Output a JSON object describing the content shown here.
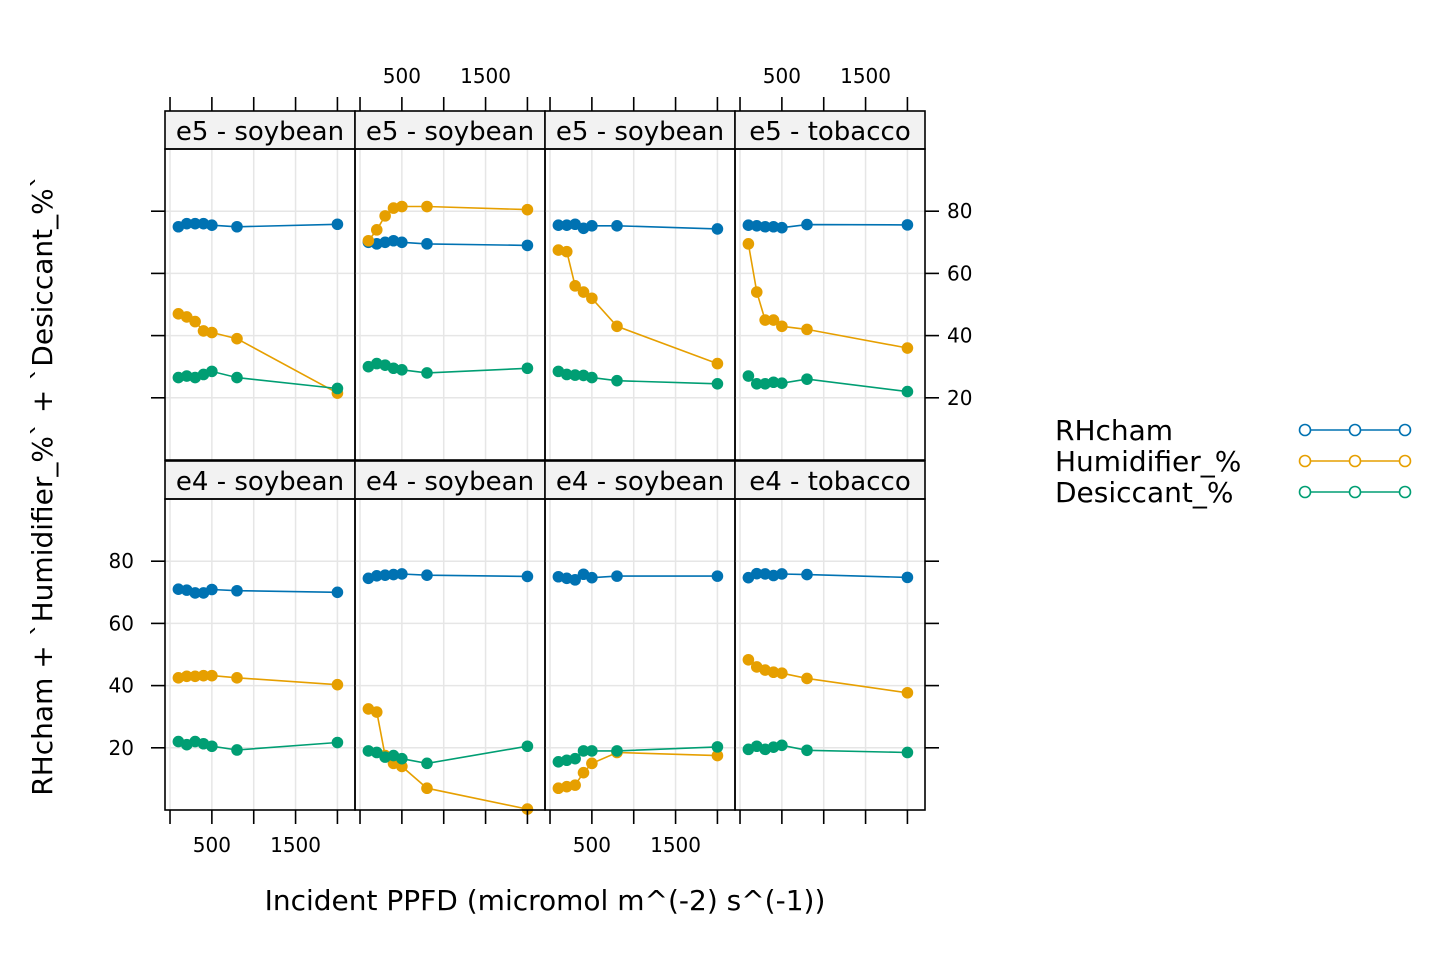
{
  "chart_data": {
    "type": "line",
    "xlabel": "Incident PPFD (micromol m^(-2) s^(-1))",
    "ylabel": "RHcham + `Humidifier_%` + `Desiccant_%`",
    "x_ticks": [
      0,
      500,
      1000,
      1500,
      2000
    ],
    "x_tick_labels": [
      "500",
      "1500"
    ],
    "x_tick_label_values": [
      500,
      1500
    ],
    "y_ticks": [
      20,
      40,
      60,
      80
    ],
    "y_tick_labels": [
      "20",
      "40",
      "60",
      "80"
    ],
    "xlim": [
      -60,
      2210
    ],
    "ylim": [
      0,
      100
    ],
    "grid": true,
    "legend_position": "right",
    "colors": {
      "RHcham": "#0072B2",
      "Humidifier_%": "#E69F00",
      "Desiccant_%": "#009E73"
    },
    "legend": [
      {
        "key": "RHcham",
        "label": "RHcham",
        "color": "#0072B2"
      },
      {
        "key": "Humidifier_%",
        "label": "Humidifier_%",
        "color": "#E69F00"
      },
      {
        "key": "Desiccant_%",
        "label": "Desiccant_%",
        "color": "#009E73"
      }
    ],
    "x": [
      100,
      200,
      300,
      400,
      500,
      600,
      900,
      2000
    ],
    "panels": [
      {
        "label": "e5 - soybean",
        "row": 0,
        "col": 0,
        "x": [
          100,
          200,
          300,
          400,
          500,
          800,
          2000
        ],
        "series": [
          {
            "name": "RHcham",
            "values": [
              75,
              76,
              76,
              76,
              75.5,
              75,
              75.8
            ]
          },
          {
            "name": "Humidifier_%",
            "values": [
              47,
              46,
              44.5,
              41.5,
              41,
              39,
              21.5
            ]
          },
          {
            "name": "Desiccant_%",
            "values": [
              26.5,
              27,
              26.5,
              27.5,
              28.5,
              26.5,
              23
            ]
          }
        ]
      },
      {
        "label": "e5 - soybean",
        "row": 0,
        "col": 1,
        "x": [
          100,
          200,
          300,
          400,
          500,
          800,
          2000
        ],
        "series": [
          {
            "name": "RHcham",
            "values": [
              70,
              69.5,
              70,
              70.5,
              70,
              69.5,
              69
            ]
          },
          {
            "name": "Humidifier_%",
            "values": [
              70.5,
              74,
              78.5,
              81,
              81.5,
              81.5,
              80.5
            ]
          },
          {
            "name": "Desiccant_%",
            "values": [
              30,
              31,
              30.5,
              29.5,
              29,
              28,
              29.5
            ]
          }
        ]
      },
      {
        "label": "e5 - soybean",
        "row": 0,
        "col": 2,
        "x": [
          100,
          200,
          300,
          400,
          500,
          800,
          2000
        ],
        "series": [
          {
            "name": "RHcham",
            "values": [
              75.5,
              75.5,
              75.8,
              74.5,
              75.3,
              75.3,
              74.3
            ]
          },
          {
            "name": "Humidifier_%",
            "values": [
              67.5,
              67,
              56,
              54,
              52,
              43,
              31
            ]
          },
          {
            "name": "Desiccant_%",
            "values": [
              28.5,
              27.5,
              27.3,
              27.2,
              26.5,
              25.5,
              24.5
            ]
          }
        ]
      },
      {
        "label": "e5 - tobacco",
        "row": 0,
        "col": 3,
        "x": [
          100,
          200,
          300,
          400,
          500,
          800,
          2000
        ],
        "series": [
          {
            "name": "RHcham",
            "values": [
              75.5,
              75.3,
              75,
              75,
              74.7,
              75.7,
              75.6
            ]
          },
          {
            "name": "Humidifier_%",
            "values": [
              69.5,
              54,
              45,
              45,
              43,
              42,
              36
            ]
          },
          {
            "name": "Desiccant_%",
            "values": [
              27,
              24.5,
              24.5,
              25,
              24.7,
              26,
              22
            ]
          }
        ]
      },
      {
        "label": "e4 - soybean",
        "row": 1,
        "col": 0,
        "x": [
          100,
          200,
          300,
          400,
          500,
          800,
          2000
        ],
        "series": [
          {
            "name": "RHcham",
            "values": [
              71,
              70.7,
              69.8,
              69.8,
              70.9,
              70.5,
              70
            ]
          },
          {
            "name": "Humidifier_%",
            "values": [
              42.5,
              43,
              43,
              43.2,
              43.2,
              42.5,
              40.3
            ]
          },
          {
            "name": "Desiccant_%",
            "values": [
              22,
              21,
              22,
              21.3,
              20.5,
              19.3,
              21.7
            ]
          }
        ]
      },
      {
        "label": "e4 - soybean",
        "row": 1,
        "col": 1,
        "x": [
          100,
          200,
          300,
          400,
          500,
          800,
          2000
        ],
        "series": [
          {
            "name": "RHcham",
            "values": [
              74.5,
              75.3,
              75.5,
              75.7,
              75.9,
              75.5,
              75.1
            ]
          },
          {
            "name": "Humidifier_%",
            "values": [
              32.5,
              31.5,
              17.5,
              15,
              14,
              7,
              0.3
            ]
          },
          {
            "name": "Desiccant_%",
            "values": [
              19,
              18.5,
              17,
              17.5,
              16.5,
              15,
              20.5
            ]
          }
        ]
      },
      {
        "label": "e4 - soybean",
        "row": 1,
        "col": 2,
        "x": [
          100,
          200,
          300,
          400,
          500,
          800,
          2000
        ],
        "series": [
          {
            "name": "RHcham",
            "values": [
              75,
              74.5,
              74,
              75.8,
              74.7,
              75.2,
              75.2
            ]
          },
          {
            "name": "Humidifier_%",
            "values": [
              7,
              7.5,
              8,
              12,
              15,
              18.5,
              17.5
            ]
          },
          {
            "name": "Desiccant_%",
            "values": [
              15.5,
              16,
              16.5,
              19,
              19,
              19,
              20.3
            ]
          }
        ]
      },
      {
        "label": "e4 - tobacco",
        "row": 1,
        "col": 3,
        "x": [
          100,
          200,
          300,
          400,
          500,
          800,
          2000
        ],
        "series": [
          {
            "name": "RHcham",
            "values": [
              74.7,
              76,
              75.9,
              75.4,
              75.9,
              75.7,
              74.8
            ]
          },
          {
            "name": "Humidifier_%",
            "values": [
              48.3,
              46,
              45,
              44.3,
              44,
              42.3,
              37.7
            ]
          },
          {
            "name": "Desiccant_%",
            "values": [
              19.5,
              20.5,
              19.5,
              20.2,
              20.8,
              19.2,
              18.5
            ]
          }
        ]
      }
    ]
  }
}
